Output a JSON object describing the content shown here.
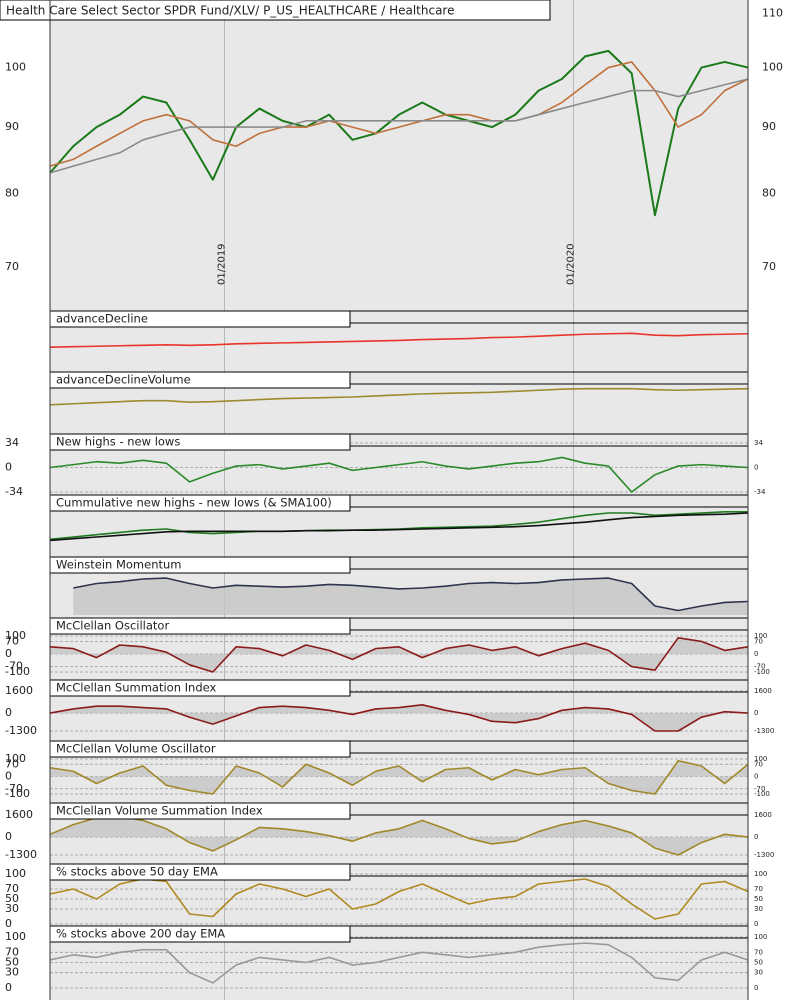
{
  "chart_data": {
    "type": "multi-panel",
    "x": [
      0,
      1,
      2,
      3,
      4,
      5,
      6,
      7,
      8,
      9,
      10,
      11,
      12,
      13,
      14,
      15,
      16,
      17,
      18,
      19,
      20,
      21,
      22,
      23,
      24,
      25,
      26,
      27,
      28,
      29,
      30
    ],
    "xlim": [
      0,
      30
    ],
    "xticks": [
      {
        "value": 7.5,
        "label": "01/2019"
      },
      {
        "value": 22.5,
        "label": "01/2020"
      }
    ],
    "panels": [
      {
        "type": "line",
        "title": "Health Care Select Sector SPDR Fund/XLV/ P_US_HEALTHCARE / Healthcare",
        "log_scale": true,
        "ylim": [
          73.7,
          112.7
        ],
        "yticks": [
          80,
          90,
          100,
          110
        ],
        "series": [
          {
            "color": "#1a7a1a",
            "values": [
              83,
              87,
              90,
              92,
              95,
              94,
              88,
              82,
              90,
              93,
              91,
              90,
              92,
              88,
              89,
              92,
              94,
              92,
              91,
              90,
              92,
              96,
              98,
              102,
              103,
              99,
              77,
              93,
              100,
              101,
              100
            ]
          },
          {
            "color": "#c0703a",
            "values": [
              84,
              85,
              87,
              89,
              91,
              92,
              91,
              88,
              87,
              89,
              90,
              90,
              91,
              90,
              89,
              90,
              91,
              92,
              92,
              91,
              91,
              92,
              94,
              97,
              100,
              101,
              96,
              90,
              92,
              96,
              98
            ]
          },
          {
            "color": "#8a8a8a",
            "values": [
              83,
              84,
              85,
              86,
              88,
              89,
              90,
              90,
              90,
              90,
              90,
              91,
              91,
              91,
              91,
              91,
              91,
              91,
              91,
              91,
              91,
              92,
              93,
              94,
              95,
              96,
              96,
              95,
              96,
              97,
              98
            ]
          }
        ]
      },
      {
        "type": "line",
        "ylim": [
          0,
          70
        ],
        "yticks": [
          70
        ],
        "series": []
      },
      {
        "type": "line",
        "title": "advanceDecline",
        "ylim": [
          0,
          100
        ],
        "yticks": [],
        "series": [
          {
            "color": "#e8352a",
            "values": [
              20,
              22,
              24,
              26,
              28,
              30,
              28,
              30,
              34,
              36,
              38,
              40,
              42,
              44,
              46,
              48,
              52,
              54,
              56,
              60,
              62,
              66,
              70,
              74,
              76,
              78,
              70,
              68,
              72,
              74,
              76
            ]
          }
        ]
      },
      {
        "type": "line",
        "title": "advanceDeclineVolume",
        "ylim": [
          0,
          100
        ],
        "yticks": [],
        "series": [
          {
            "color": "#9c8a2e",
            "values": [
              20,
              24,
              28,
              32,
              36,
              36,
              30,
              32,
              36,
              40,
              44,
              46,
              48,
              50,
              54,
              58,
              62,
              64,
              66,
              68,
              72,
              76,
              80,
              82,
              82,
              82,
              78,
              76,
              78,
              80,
              82
            ]
          }
        ]
      },
      {
        "type": "line",
        "title": "New highs - new lows",
        "ylim": [
          -34,
          34
        ],
        "yticks": [
          34,
          0,
          -34
        ],
        "grid": true,
        "series": [
          {
            "color": "#2a8a2a",
            "values": [
              0,
              4,
              8,
              6,
              10,
              6,
              -20,
              -8,
              2,
              4,
              -2,
              2,
              6,
              -4,
              0,
              4,
              8,
              2,
              -2,
              2,
              6,
              8,
              14,
              6,
              2,
              -34,
              -10,
              2,
              4,
              2,
              0
            ]
          }
        ]
      },
      {
        "type": "line",
        "title": "Cummulative new highs - new lows (& SMA100)",
        "ylim": [
          0,
          70
        ],
        "yticks": [],
        "series": [
          {
            "color": "#1e7a1e",
            "values": [
              10,
              14,
              18,
              22,
              26,
              28,
              22,
              20,
              22,
              24,
              24,
              25,
              26,
              26,
              27,
              28,
              30,
              31,
              32,
              33,
              36,
              40,
              46,
              52,
              56,
              56,
              52,
              54,
              56,
              58,
              58
            ]
          },
          {
            "color": "#111111",
            "values": [
              8,
              11,
              14,
              17,
              20,
              23,
              24,
              24,
              24,
              24,
              24,
              25,
              25,
              26,
              26,
              27,
              28,
              29,
              30,
              31,
              32,
              34,
              37,
              40,
              44,
              48,
              50,
              52,
              53,
              54,
              56
            ]
          }
        ]
      },
      {
        "type": "line",
        "title": "Weinstein Momentum",
        "ylim": [
          0,
          100
        ],
        "yticks": [],
        "fill": "bottom",
        "series": [
          {
            "color": "#2e3450",
            "values": [
              null,
              60,
              70,
              74,
              80,
              82,
              70,
              60,
              66,
              64,
              62,
              64,
              68,
              66,
              62,
              58,
              60,
              64,
              70,
              72,
              70,
              72,
              78,
              80,
              82,
              70,
              20,
              10,
              20,
              28,
              30
            ]
          }
        ]
      },
      {
        "type": "line",
        "title": "McClellan Oscillator",
        "ylim": [
          -100,
          100
        ],
        "yticks": [
          100,
          70,
          0,
          -70,
          -100
        ],
        "grid": true,
        "fill": "zero",
        "series": [
          {
            "color": "#8b1a1a",
            "values": [
              40,
              30,
              -20,
              50,
              40,
              10,
              -60,
              -100,
              40,
              30,
              -10,
              50,
              20,
              -30,
              30,
              40,
              -20,
              30,
              50,
              20,
              40,
              -10,
              30,
              60,
              20,
              -70,
              -90,
              90,
              70,
              20,
              40
            ]
          }
        ]
      },
      {
        "type": "line",
        "title": "McClellan Summation Index",
        "ylim": [
          -1300,
          1600
        ],
        "yticks": [
          1600,
          0,
          -1300
        ],
        "grid": true,
        "fill": "zero",
        "series": [
          {
            "color": "#8b1a1a",
            "values": [
              0,
              300,
              500,
              500,
              400,
              300,
              -300,
              -800,
              -200,
              400,
              500,
              400,
              200,
              -100,
              300,
              400,
              600,
              200,
              -100,
              -600,
              -700,
              -400,
              200,
              400,
              300,
              -100,
              -1300,
              -1300,
              -300,
              100,
              0
            ]
          }
        ]
      },
      {
        "type": "line",
        "title": "McClellan Volume Oscillator",
        "ylim": [
          -100,
          100
        ],
        "yticks": [
          100,
          70,
          0,
          -70,
          -100
        ],
        "grid": true,
        "fill": "zero",
        "series": [
          {
            "color": "#a08828",
            "values": [
              50,
              30,
              -40,
              20,
              60,
              -50,
              -80,
              -100,
              60,
              20,
              -60,
              70,
              20,
              -50,
              30,
              60,
              -30,
              40,
              50,
              -20,
              40,
              10,
              40,
              50,
              -40,
              -80,
              -100,
              90,
              60,
              -40,
              70
            ]
          }
        ]
      },
      {
        "type": "line",
        "title": "McClellan Volume Summation Index",
        "ylim": [
          -1300,
          1600
        ],
        "yticks": [
          1600,
          0,
          -1300
        ],
        "grid": true,
        "fill": "zero",
        "series": [
          {
            "color": "#a08828",
            "values": [
              200,
              900,
              1400,
              1500,
              1200,
              600,
              -400,
              -1000,
              -200,
              700,
              600,
              400,
              100,
              -300,
              300,
              600,
              1200,
              600,
              -100,
              -500,
              -300,
              400,
              900,
              1200,
              800,
              300,
              -800,
              -1300,
              -400,
              200,
              0
            ]
          }
        ]
      },
      {
        "type": "line",
        "title": "% stocks above 50 day EMA",
        "ylim": [
          0,
          100
        ],
        "yticks": [
          100,
          70,
          50,
          30,
          0
        ],
        "grid": true,
        "series": [
          {
            "color": "#b08a20",
            "values": [
              60,
              70,
              50,
              80,
              90,
              85,
              20,
              15,
              60,
              80,
              70,
              55,
              70,
              30,
              40,
              65,
              80,
              60,
              40,
              50,
              55,
              80,
              85,
              90,
              75,
              40,
              10,
              20,
              80,
              85,
              65
            ]
          }
        ]
      },
      {
        "type": "line",
        "title": "% stocks above 200 day EMA",
        "ylim": [
          0,
          100
        ],
        "yticks": [
          100,
          70,
          50,
          30,
          0
        ],
        "grid": true,
        "series": [
          {
            "color": "#999999",
            "values": [
              55,
              65,
              60,
              70,
              75,
              75,
              30,
              10,
              45,
              60,
              55,
              50,
              60,
              45,
              50,
              60,
              70,
              65,
              60,
              65,
              70,
              80,
              85,
              88,
              85,
              60,
              20,
              15,
              55,
              70,
              55
            ]
          }
        ]
      }
    ]
  }
}
